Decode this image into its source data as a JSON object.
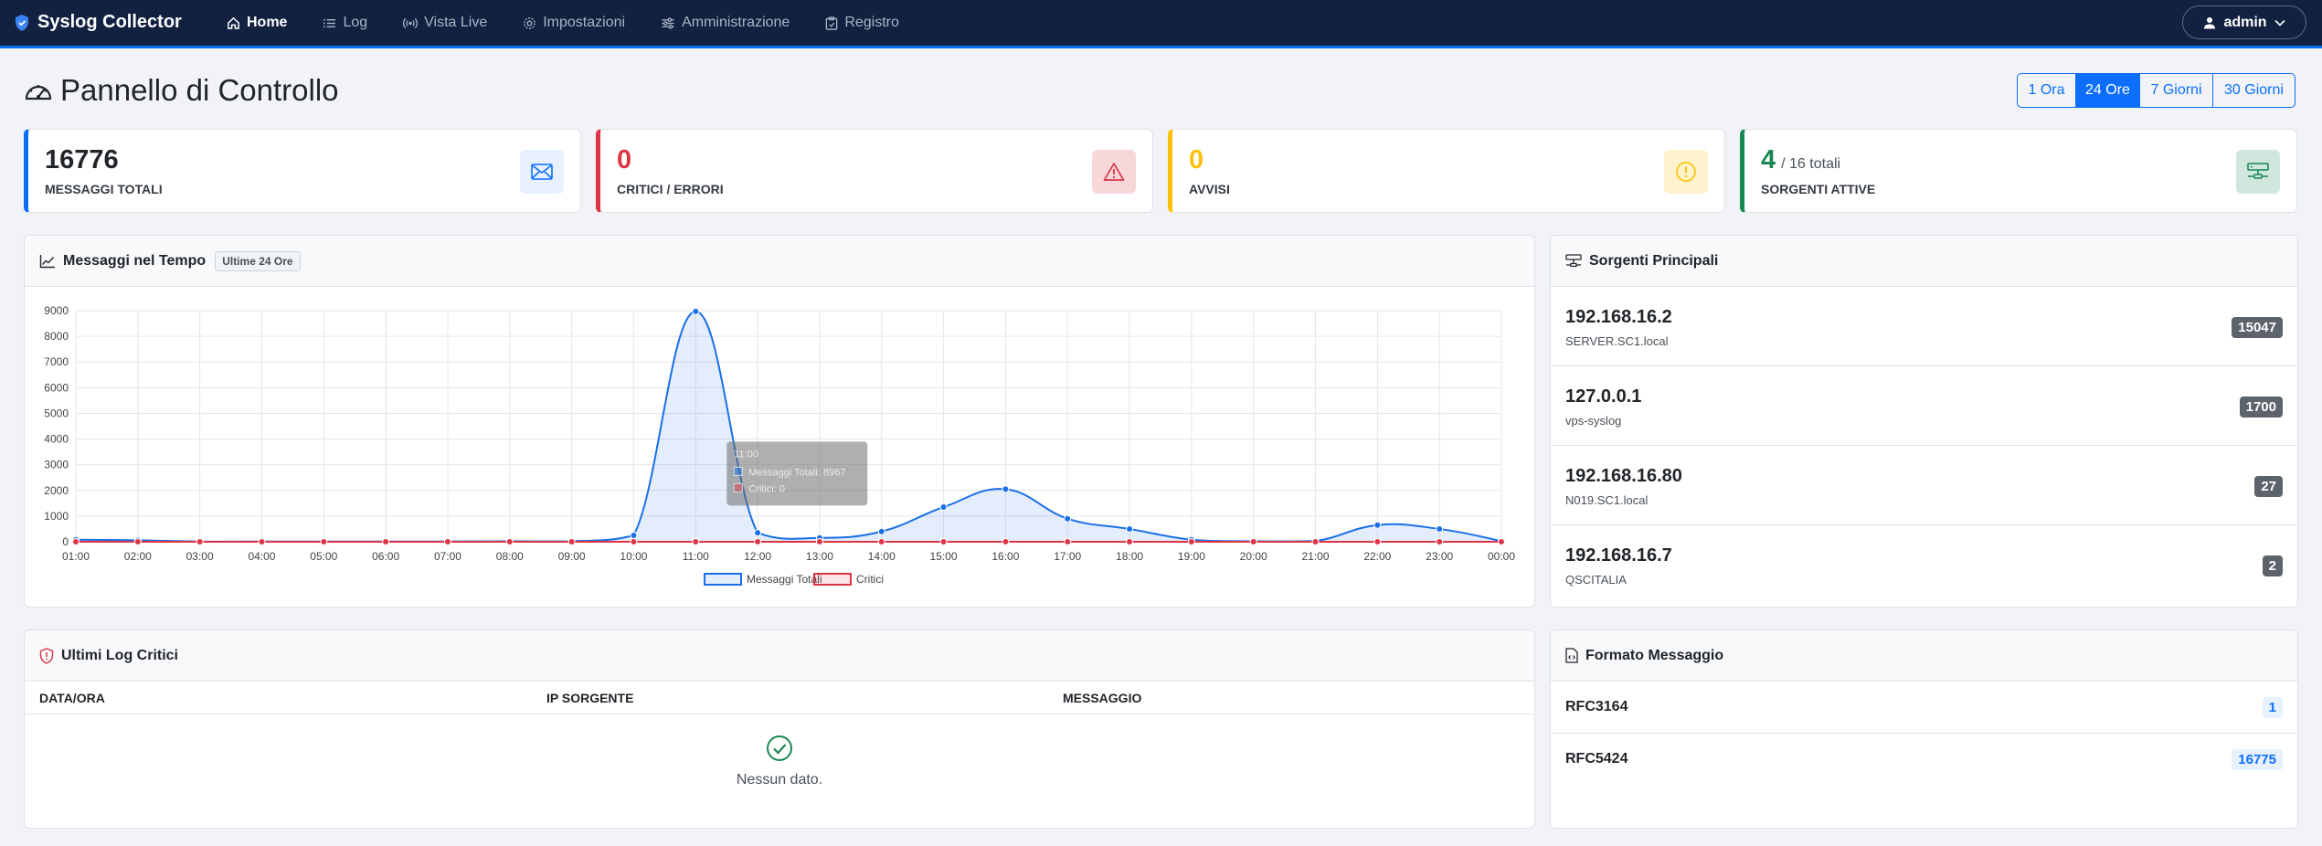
{
  "app": {
    "brand": "Syslog Collector",
    "user": "admin"
  },
  "nav": [
    {
      "label": "Home",
      "icon": "home-icon",
      "active": true
    },
    {
      "label": "Log",
      "icon": "list-icon",
      "active": false
    },
    {
      "label": "Vista Live",
      "icon": "broadcast-icon",
      "active": false
    },
    {
      "label": "Impostazioni",
      "icon": "gear-icon",
      "active": false
    },
    {
      "label": "Amministrazione",
      "icon": "sliders-icon",
      "active": false
    },
    {
      "label": "Registro",
      "icon": "clipboard-icon",
      "active": false
    }
  ],
  "page": {
    "title": "Pannello di Controllo"
  },
  "ranges": [
    {
      "label": "1 Ora",
      "active": false
    },
    {
      "label": "24 Ore",
      "active": true
    },
    {
      "label": "7 Giorni",
      "active": false
    },
    {
      "label": "30 Giorni",
      "active": false
    }
  ],
  "stats": {
    "total": {
      "value": "16776",
      "label": "MESSAGGI TOTALI",
      "color": "#0d6efd",
      "icon": "envelope-icon"
    },
    "critical": {
      "value": "0",
      "label": "CRITICI / ERRORI",
      "color": "#dc3545",
      "icon": "warning-icon"
    },
    "warnings": {
      "value": "0",
      "label": "AVVISI",
      "color": "#ffc107",
      "icon": "alert-circle-icon"
    },
    "sources": {
      "value": "4",
      "sub": "/ 16 totali",
      "label": "SORGENTI ATTIVE",
      "color": "#198754",
      "icon": "server-icon"
    }
  },
  "messages_panel": {
    "title": "Messaggi nel Tempo",
    "badge": "Ultime 24 Ore"
  },
  "sources_panel": {
    "title": "Sorgenti Principali",
    "items": [
      {
        "ip": "192.168.16.2",
        "host": "SERVER.SC1.local",
        "count": "15047"
      },
      {
        "ip": "127.0.0.1",
        "host": "vps-syslog",
        "count": "1700"
      },
      {
        "ip": "192.168.16.80",
        "host": "N019.SC1.local",
        "count": "27"
      },
      {
        "ip": "192.168.16.7",
        "host": "QSCITALIA",
        "count": "2"
      }
    ]
  },
  "critical_panel": {
    "title": "Ultimi Log Critici",
    "columns": [
      "DATA/ORA",
      "IP SORGENTE",
      "MESSAGGIO"
    ],
    "empty": "Nessun dato."
  },
  "format_panel": {
    "title": "Formato Messaggio",
    "items": [
      {
        "name": "RFC3164",
        "count": "1"
      },
      {
        "name": "RFC5424",
        "count": "16775"
      }
    ]
  },
  "chart_data": {
    "type": "line",
    "x": [
      "01:00",
      "02:00",
      "03:00",
      "04:00",
      "05:00",
      "06:00",
      "07:00",
      "08:00",
      "09:00",
      "10:00",
      "11:00",
      "12:00",
      "13:00",
      "14:00",
      "15:00",
      "16:00",
      "17:00",
      "18:00",
      "19:00",
      "20:00",
      "21:00",
      "22:00",
      "23:00",
      "00:00"
    ],
    "series": [
      {
        "name": "Messaggi Totali",
        "color": "#1a6fe8",
        "values": [
          80,
          60,
          10,
          10,
          10,
          10,
          10,
          20,
          20,
          250,
          8967,
          350,
          150,
          400,
          1350,
          2050,
          900,
          500,
          80,
          20,
          30,
          650,
          500,
          30
        ]
      },
      {
        "name": "Critici",
        "color": "#dc3545",
        "values": [
          0,
          0,
          0,
          0,
          0,
          0,
          0,
          0,
          0,
          0,
          0,
          0,
          0,
          0,
          0,
          0,
          0,
          0,
          0,
          0,
          0,
          0,
          0,
          0
        ]
      }
    ],
    "ylim": [
      0,
      9000
    ],
    "yticks": [
      0,
      1000,
      2000,
      3000,
      4000,
      5000,
      6000,
      7000,
      8000,
      9000
    ],
    "tooltip": {
      "title": "11:00",
      "lines": [
        "Messaggi Totali: 8967",
        "Critici: 0"
      ]
    },
    "legend": "bottom"
  }
}
